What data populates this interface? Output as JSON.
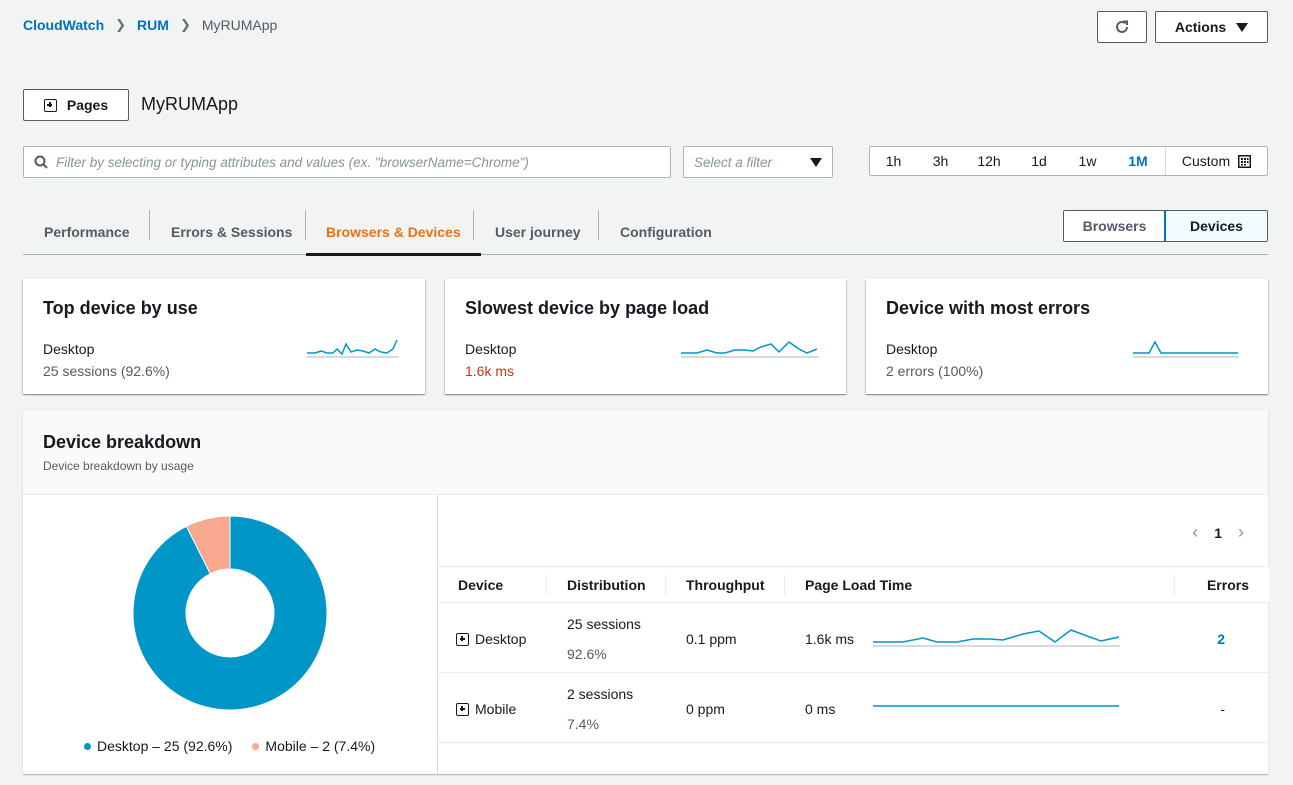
{
  "breadcrumb": {
    "items": [
      "CloudWatch",
      "RUM"
    ],
    "current": "MyRUMApp"
  },
  "header": {
    "actions_label": "Actions",
    "pages_label": "Pages",
    "title": "MyRUMApp"
  },
  "filter": {
    "placeholder": "Filter by selecting or typing attributes and values (ex. \"browserName=Chrome\")",
    "select_placeholder": "Select a filter"
  },
  "time_range": {
    "options": [
      "1h",
      "3h",
      "12h",
      "1d",
      "1w",
      "1M"
    ],
    "selected": "1M",
    "custom_label": "Custom"
  },
  "tabs": [
    "Performance",
    "Errors & Sessions",
    "Browsers & Devices",
    "User journey",
    "Configuration"
  ],
  "active_tab": "Browsers & Devices",
  "toggle": {
    "browsers": "Browsers",
    "devices": "Devices",
    "selected": "Devices"
  },
  "cards": [
    {
      "title": "Top device by use",
      "device": "Desktop",
      "value": "25 sessions (92.6%)"
    },
    {
      "title": "Slowest device by page load",
      "device": "Desktop",
      "value": "1.6k ms"
    },
    {
      "title": "Device with most errors",
      "device": "Desktop",
      "value": "2 errors (100%)"
    }
  ],
  "breakdown": {
    "title": "Device breakdown",
    "subtitle": "Device breakdown by usage",
    "legend": [
      "Desktop – 25 (92.6%)",
      "Mobile – 2 (7.4%)"
    ],
    "page": "1",
    "columns": [
      "Device",
      "Distribution",
      "Throughput",
      "Page Load Time",
      "Errors"
    ],
    "rows": [
      {
        "device": "Desktop",
        "sessions": "25 sessions",
        "pct": "92.6%",
        "throughput": "0.1 ppm",
        "plt": "1.6k ms",
        "errors": "2"
      },
      {
        "device": "Mobile",
        "sessions": "2 sessions",
        "pct": "7.4%",
        "throughput": "0 ppm",
        "plt": "0 ms",
        "errors": "-"
      }
    ]
  },
  "chart_data": {
    "type": "pie",
    "categories": [
      "Desktop",
      "Mobile"
    ],
    "values": [
      25,
      2
    ],
    "colors": [
      "#0196c8",
      "#f7a88e"
    ]
  },
  "colors": {
    "accent": "#0073bb",
    "active_tab": "#ec7211",
    "error_value": "#d13212",
    "sparkline": "#0196c8"
  }
}
